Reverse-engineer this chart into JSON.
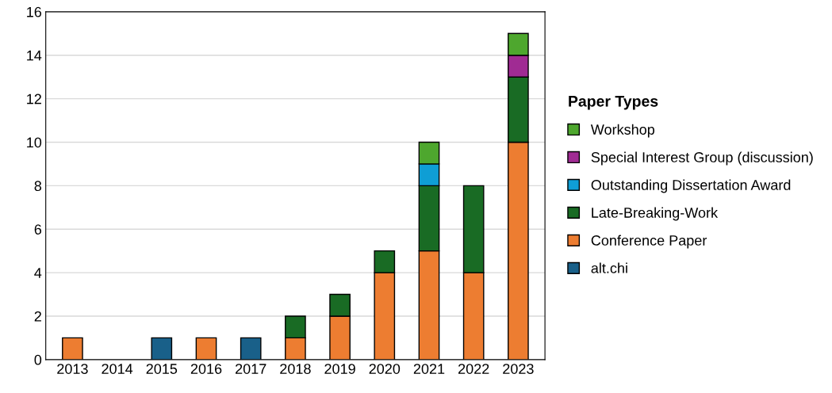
{
  "chart_data": {
    "type": "bar",
    "stacked": true,
    "legend_title": "Paper Types",
    "legend": "right",
    "grid": "y",
    "categories": [
      "2013",
      "2014",
      "2015",
      "2016",
      "2017",
      "2018",
      "2019",
      "2020",
      "2021",
      "2022",
      "2023"
    ],
    "ylim": [
      0,
      16
    ],
    "yticks": [
      0,
      2,
      4,
      6,
      8,
      10,
      12,
      14,
      16
    ],
    "series": [
      {
        "name": "alt.chi",
        "color": "#196089",
        "values": [
          null,
          null,
          1,
          null,
          1,
          null,
          null,
          null,
          null,
          null,
          null
        ]
      },
      {
        "name": "Conference Paper",
        "color": "#ed7d31",
        "values": [
          1,
          null,
          null,
          1,
          null,
          1,
          2,
          4,
          5,
          4,
          10
        ]
      },
      {
        "name": "Late-Breaking-Work",
        "color": "#196b24",
        "values": [
          null,
          null,
          null,
          null,
          null,
          1,
          1,
          1,
          3,
          4,
          3
        ]
      },
      {
        "name": "Outstanding Dissertation Award",
        "color": "#0f9ed5",
        "values": [
          null,
          null,
          null,
          null,
          null,
          null,
          null,
          null,
          1,
          null,
          null
        ]
      },
      {
        "name": "Special Interest Group (discussion)",
        "color": "#a02b93",
        "values": [
          null,
          null,
          null,
          null,
          null,
          null,
          null,
          null,
          null,
          null,
          1
        ]
      },
      {
        "name": "Workshop",
        "color": "#4ea72e",
        "values": [
          null,
          null,
          null,
          null,
          null,
          null,
          null,
          null,
          1,
          null,
          1
        ]
      }
    ]
  }
}
